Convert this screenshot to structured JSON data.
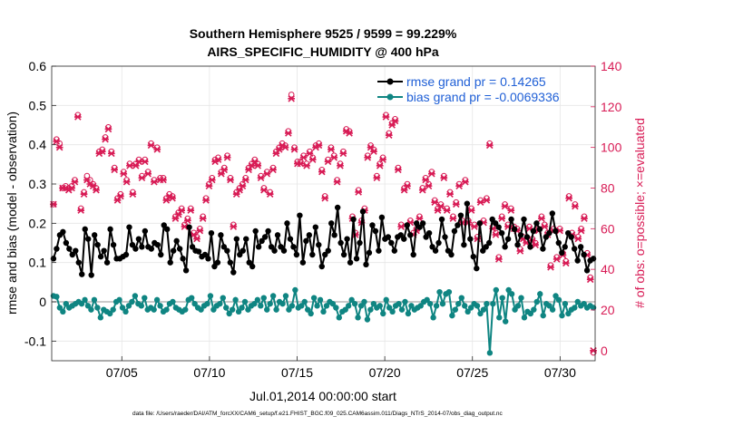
{
  "chart_data": {
    "type": "line",
    "title_line1": "Southern Hemisphere 9525 / 9599 = 99.229%",
    "title_line2": "AIRS_SPECIFIC_HUMIDITY @ 400 hPa",
    "xlabel": "Jul.01,2014 00:00:00 start",
    "ylabel_left": "rmse and bias (model - observation)",
    "ylabel_right": "# of obs: o=possible; ×=evaluated",
    "footnote": "data file: /Users/raeder/DAI/ATM_forcXX/CAM6_setup/f.e21.FHIST_BGC.f09_025.CAM6assim.011/Diags_NTrS_2014-07/obs_diag_output.nc",
    "x_day_range": [
      1,
      32
    ],
    "ylim_left": [
      -0.15,
      0.6
    ],
    "ylim_right": [
      -5,
      140
    ],
    "y_ticks_left": [
      "-0.1",
      "0",
      "0.1",
      "0.2",
      "0.3",
      "0.4",
      "0.5",
      "0.6"
    ],
    "y_ticks_right": [
      "0",
      "20",
      "40",
      "60",
      "80",
      "100",
      "120",
      "140"
    ],
    "x_ticks": [
      {
        "label": "07/05",
        "day": 5
      },
      {
        "label": "07/10",
        "day": 10
      },
      {
        "label": "07/15",
        "day": 15
      },
      {
        "label": "07/20",
        "day": 20
      },
      {
        "label": "07/25",
        "day": 25
      },
      {
        "label": "07/30",
        "day": 30
      }
    ],
    "colors": {
      "rmse": "#000000",
      "bias": "#0f8582",
      "obs": "#d81b55",
      "zero_line": "#aaaaaa",
      "right_axis": "#d81b55"
    },
    "series": [
      {
        "name": "rmse",
        "legend": "rmse grand pr = 0.14265",
        "values": [
          0.11,
          0.135,
          0.17,
          0.178,
          0.15,
          0.135,
          0.12,
          0.13,
          0.1,
          0.07,
          0.185,
          0.16,
          0.068,
          0.17,
          0.145,
          0.115,
          0.13,
          0.1,
          0.185,
          0.145,
          0.11,
          0.11,
          0.115,
          0.12,
          0.19,
          0.145,
          0.135,
          0.16,
          0.14,
          0.18,
          0.14,
          0.135,
          0.15,
          0.145,
          0.12,
          0.195,
          0.185,
          0.1,
          0.13,
          0.155,
          0.135,
          0.11,
          0.08,
          0.19,
          0.14,
          0.13,
          0.128,
          0.115,
          0.12,
          0.11,
          0.175,
          0.09,
          0.1,
          0.17,
          0.14,
          0.13,
          0.1,
          0.075,
          0.16,
          0.12,
          0.13,
          0.16,
          0.1,
          0.09,
          0.18,
          0.14,
          0.155,
          0.165,
          0.18,
          0.14,
          0.13,
          0.17,
          0.14,
          0.13,
          0.2,
          0.16,
          0.14,
          0.12,
          0.22,
          0.1,
          0.155,
          0.17,
          0.12,
          0.19,
          0.145,
          0.09,
          0.12,
          0.13,
          0.2,
          0.17,
          0.24,
          0.15,
          0.12,
          0.16,
          0.1,
          0.21,
          0.11,
          0.15,
          0.23,
          0.095,
          0.125,
          0.195,
          0.18,
          0.13,
          0.215,
          0.16,
          0.165,
          0.15,
          0.13,
          0.165,
          0.17,
          0.16,
          0.195,
          0.17,
          0.12,
          0.2,
          0.19,
          0.2,
          0.165,
          0.175,
          0.14,
          0.13,
          0.15,
          0.21,
          0.165,
          0.13,
          0.12,
          0.18,
          0.195,
          0.22,
          0.145,
          0.25,
          0.16,
          0.115,
          0.085,
          0.2,
          0.13,
          0.14,
          0.15,
          0.21,
          0.2,
          0.19,
          0.175,
          0.14,
          0.16,
          0.21,
          0.185,
          0.145,
          0.17,
          0.21,
          0.165,
          0.14,
          0.18,
          0.2,
          0.185,
          0.135,
          0.165,
          0.175,
          0.225,
          0.18,
          0.15,
          0.125,
          0.14,
          0.175,
          0.165,
          0.135,
          0.105,
          0.14,
          0.12,
          0.08,
          0.105,
          0.11
        ]
      },
      {
        "name": "bias",
        "legend": "bias grand pr = -0.0069336",
        "values": [
          0.015,
          0.013,
          -0.015,
          -0.025,
          -0.005,
          -0.015,
          -0.01,
          -0.005,
          0.0,
          -0.005,
          0.005,
          -0.01,
          -0.02,
          0.005,
          -0.015,
          -0.04,
          -0.02,
          -0.025,
          -0.03,
          -0.02,
          0.0,
          0.005,
          -0.015,
          -0.025,
          -0.01,
          0.0,
          0.015,
          -0.005,
          -0.01,
          0.01,
          -0.02,
          -0.015,
          -0.02,
          0.005,
          -0.01,
          -0.025,
          -0.02,
          -0.005,
          0.0,
          -0.015,
          -0.02,
          -0.025,
          -0.02,
          0.005,
          0.01,
          -0.005,
          -0.015,
          -0.02,
          -0.01,
          -0.005,
          0.015,
          -0.02,
          -0.01,
          -0.005,
          0.01,
          -0.015,
          -0.03,
          -0.02,
          0.005,
          -0.025,
          -0.015,
          0.0,
          -0.02,
          -0.01,
          -0.005,
          0.005,
          -0.01,
          0.01,
          -0.02,
          -0.005,
          0.015,
          -0.02,
          0.0,
          -0.005,
          0.015,
          -0.02,
          -0.01,
          0.03,
          -0.015,
          -0.01,
          0.0,
          -0.02,
          -0.03,
          0.01,
          -0.01,
          0.005,
          -0.025,
          -0.01,
          0.0,
          -0.005,
          -0.015,
          -0.04,
          -0.025,
          -0.02,
          -0.01,
          0.005,
          -0.005,
          -0.04,
          -0.01,
          0.0,
          -0.045,
          -0.02,
          -0.005,
          -0.015,
          -0.01,
          -0.03,
          0.005,
          -0.015,
          -0.025,
          -0.01,
          -0.005,
          -0.02,
          0.0,
          -0.03,
          -0.01,
          -0.02,
          -0.015,
          -0.01,
          0.0,
          0.005,
          -0.005,
          -0.04,
          -0.01,
          0.025,
          -0.005,
          0.02,
          0.025,
          -0.035,
          -0.02,
          -0.005,
          0.01,
          -0.01,
          -0.025,
          -0.015,
          -0.005,
          -0.01,
          -0.03,
          -0.02,
          -0.005,
          -0.13,
          -0.005,
          0.03,
          -0.04,
          0.01,
          -0.05,
          0.03,
          0.02,
          -0.02,
          -0.01,
          0.01,
          -0.04,
          -0.025,
          -0.03,
          -0.02,
          0.0,
          0.02,
          -0.035,
          -0.005,
          -0.01,
          -0.02,
          0.015,
          0.005,
          -0.035,
          -0.005,
          -0.03,
          -0.02,
          -0.015,
          0.0,
          -0.01,
          -0.005,
          -0.015,
          -0.01,
          -0.015
        ]
      },
      {
        "name": "obs_possible",
        "values": [
          72,
          104,
          102,
          80,
          81,
          80,
          81,
          84,
          116,
          70,
          78,
          86,
          84,
          82,
          80,
          98,
          99,
          105,
          110,
          98,
          90,
          75,
          77,
          88,
          84,
          92,
          78,
          92,
          94,
          86,
          94,
          88,
          102,
          84,
          100,
          85,
          85,
          75,
          77,
          76,
          66,
          68,
          70,
          62,
          65,
          70,
          58,
          56,
          60,
          66,
          75,
          82,
          85,
          94,
          95,
          88,
          90,
          96,
          85,
          62,
          78,
          80,
          82,
          85,
          90,
          92,
          94,
          92,
          86,
          80,
          88,
          78,
          90,
          98,
          100,
          102,
          101,
          108,
          126,
          100,
          93,
          93,
          96,
          92,
          98,
          95,
          101,
          102,
          89,
          76,
          94,
          100,
          96,
          84,
          92,
          98,
          109,
          108,
          66,
          58,
          79,
          64,
          70,
          96,
          101,
          99,
          86,
          92,
          95,
          116,
          107,
          112,
          114,
          90,
          62,
          80,
          82,
          64,
          58,
          60,
          66,
          80,
          85,
          82,
          88,
          74,
          70,
          72,
          86,
          70,
          78,
          66,
          73,
          82,
          64,
          84,
          64,
          70,
          62,
          56,
          74,
          64,
          75,
          102,
          61,
          58,
          46,
          66,
          72,
          62,
          70,
          61,
          60,
          50,
          56,
          54,
          61,
          55,
          53,
          60,
          66,
          62,
          58,
          42,
          60,
          46,
          60,
          48,
          44,
          76,
          58,
          72,
          56,
          60,
          66,
          48,
          36,
          -1
        ]
      },
      {
        "name": "obs_evaluated",
        "values": [
          72,
          103,
          100,
          80,
          80,
          79,
          80,
          83,
          115,
          69,
          77,
          84,
          82,
          81,
          79,
          97,
          98,
          104,
          109,
          97,
          89,
          74,
          76,
          87,
          83,
          91,
          77,
          91,
          93,
          85,
          93,
          87,
          101,
          83,
          99,
          84,
          84,
          74,
          76,
          75,
          65,
          67,
          69,
          61,
          64,
          69,
          57,
          55,
          59,
          65,
          74,
          81,
          84,
          93,
          94,
          87,
          89,
          95,
          84,
          61,
          77,
          79,
          81,
          84,
          89,
          91,
          93,
          91,
          85,
          79,
          87,
          77,
          89,
          97,
          99,
          101,
          100,
          107,
          124,
          99,
          92,
          92,
          95,
          91,
          97,
          94,
          100,
          101,
          88,
          75,
          93,
          99,
          95,
          83,
          91,
          97,
          108,
          107,
          65,
          57,
          78,
          63,
          69,
          95,
          100,
          98,
          85,
          91,
          94,
          115,
          106,
          111,
          113,
          89,
          61,
          79,
          81,
          63,
          57,
          59,
          65,
          79,
          84,
          81,
          87,
          73,
          69,
          71,
          85,
          69,
          77,
          65,
          72,
          81,
          63,
          83,
          63,
          69,
          61,
          55,
          73,
          63,
          74,
          101,
          60,
          57,
          45,
          65,
          71,
          61,
          69,
          60,
          59,
          49,
          55,
          53,
          60,
          54,
          52,
          59,
          65,
          61,
          57,
          41,
          59,
          45,
          59,
          47,
          43,
          75,
          57,
          71,
          55,
          59,
          65,
          47,
          35,
          0
        ]
      }
    ]
  }
}
